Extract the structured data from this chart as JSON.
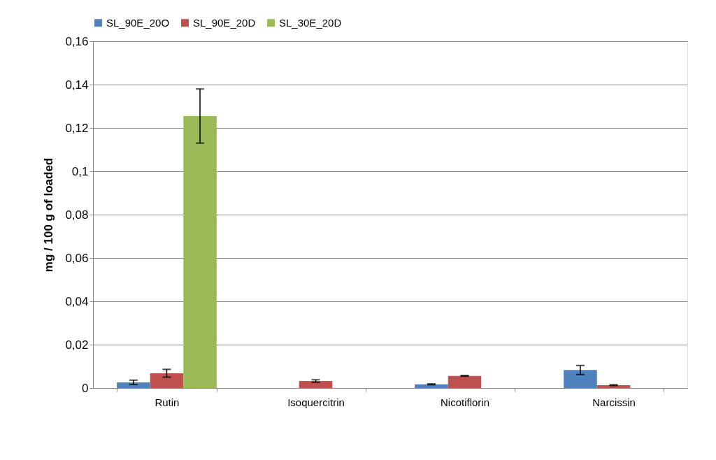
{
  "chart_data": {
    "type": "bar",
    "ylabel": "mg / 100 g of loaded",
    "categories": [
      "Rutin",
      "Isoquercitrin",
      "Nicotiflorin",
      "Narcissin"
    ],
    "series": [
      {
        "name": "SL_90E_20O",
        "color": "#4f81bd",
        "values": [
          0.0026,
          0,
          0.0017,
          0.0083
        ],
        "errors": [
          0.001,
          null,
          0.0002,
          0.0021
        ]
      },
      {
        "name": "SL_90E_20D",
        "color": "#c0504d",
        "values": [
          0.0068,
          0.0032,
          0.0056,
          0.0013
        ],
        "errors": [
          0.0018,
          0.0006,
          0.0002,
          0.0002
        ]
      },
      {
        "name": "SL_30E_20D",
        "color": "#9bbb59",
        "values": [
          0.1255,
          0,
          0,
          0
        ],
        "errors": [
          0.0125,
          null,
          null,
          null
        ]
      }
    ],
    "ylim": [
      0,
      0.16
    ],
    "yticks": [
      0,
      {
        "value": 0.02,
        "label": "0,02"
      },
      {
        "value": 0.04,
        "label": "0,04"
      },
      {
        "value": 0.06,
        "label": "0,06"
      },
      {
        "value": 0.08,
        "label": "0,08"
      },
      {
        "value": 0.1,
        "label": "0,1"
      },
      {
        "value": 0.12,
        "label": "0,12"
      },
      {
        "value": 0.14,
        "label": "0,14"
      },
      {
        "value": 0.16,
        "label": "0,16"
      }
    ],
    "grid": "y",
    "legend": "top"
  }
}
